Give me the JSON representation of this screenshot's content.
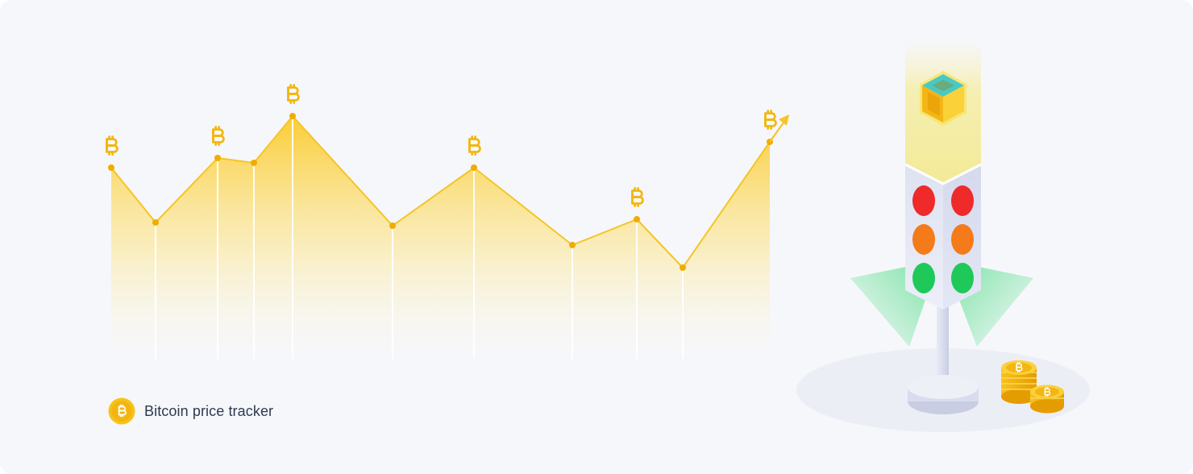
{
  "colors": {
    "background": "#f6f7fb",
    "accent": "#f7c31a",
    "accent_dark": "#eaa800",
    "line": "#f5c526",
    "light_red": "#ee2a2a",
    "light_orange": "#f47a1a",
    "light_green": "#1ec95a"
  },
  "chart_data": {
    "type": "area",
    "title": "",
    "xlabel": "",
    "ylabel": "",
    "x": [
      1,
      2,
      3,
      4,
      5,
      6,
      7,
      8,
      9,
      10,
      11
    ],
    "values": [
      58,
      41,
      61,
      59.5,
      74,
      40,
      58,
      34,
      42,
      27,
      66
    ],
    "ylim": [
      0,
      110
    ],
    "grid": false,
    "markers": [
      1,
      3,
      5,
      7,
      9,
      11
    ],
    "marker_icon": "bitcoin-icon",
    "trend_arrow": "up",
    "legend_position": "bottom-left"
  },
  "legend": {
    "icon": "bitcoin-icon",
    "label": "Bitcoin price tracker"
  },
  "illustration": {
    "name": "traffic-light",
    "top_icon": "cube-icon",
    "lights": [
      "red",
      "orange",
      "green"
    ],
    "coins_icon": "bitcoin-coin-stack-icon"
  }
}
